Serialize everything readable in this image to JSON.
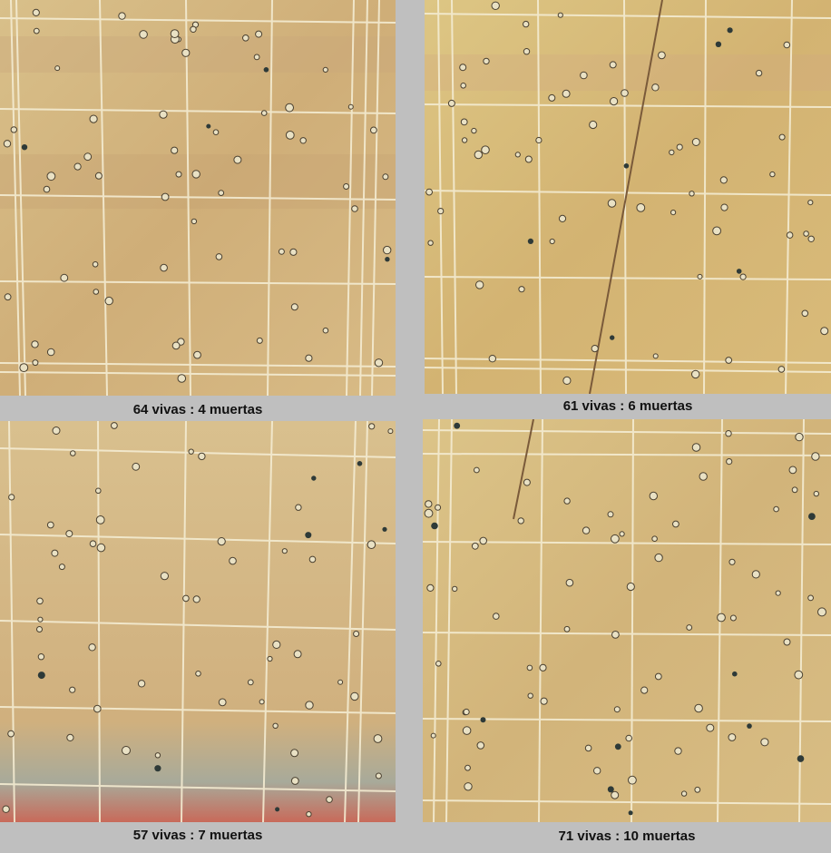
{
  "panels": [
    {
      "caption": "64 vivas : 4 muertas",
      "live": 64,
      "dead": 4
    },
    {
      "caption": "61 vivas : 6 muertas",
      "live": 61,
      "dead": 6
    },
    {
      "caption": "57 vivas : 7 muertas",
      "live": 57,
      "dead": 7
    },
    {
      "caption": "71 vivas : 10 muertas",
      "live": 71,
      "dead": 10
    }
  ],
  "colors": {
    "background": "#bfbfbf",
    "field": "#d6b87a",
    "grid": "#f4ecd2",
    "live_cell": "#e9e1c4",
    "dead_cell": "#2e3a38",
    "stained_cell": "#3f8a8a"
  }
}
